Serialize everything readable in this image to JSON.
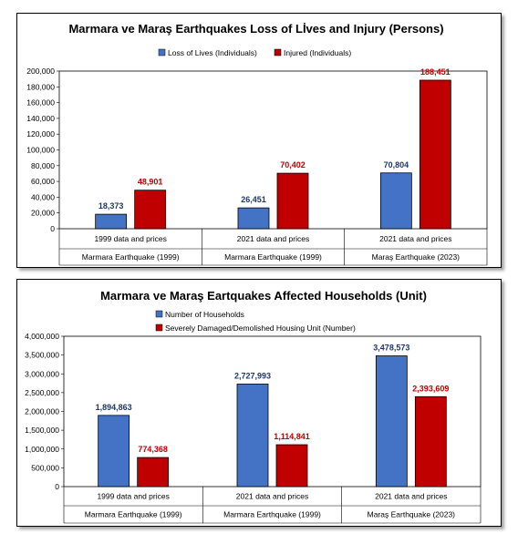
{
  "chart_data": [
    {
      "type": "bar",
      "title": "Marmara ve Maraş Earthquakes Loss of Lİves and Injury (Persons)",
      "categories": [
        "1999 data and prices",
        "2021 data and prices",
        "2021 data and prices"
      ],
      "groups": [
        "Marmara Earthquake (1999)",
        "Marmara Earthquake (1999)",
        "Maraş Earthquake     (2023)"
      ],
      "series": [
        {
          "name": "Loss of Lives (Individuals)",
          "values": [
            18373,
            26451,
            70804
          ],
          "labels": [
            "18,373",
            "26,451",
            "70,804"
          ],
          "color": "#4472c4"
        },
        {
          "name": "Injured (Individuals)",
          "values": [
            48901,
            70402,
            188451
          ],
          "labels": [
            "48,901",
            "70,402",
            "188,451"
          ],
          "color": "#c00000"
        }
      ],
      "ylim": [
        0,
        200000
      ],
      "yticks": [
        "0",
        "20,000",
        "40,000",
        "60,000",
        "80,000",
        "100,000",
        "120,000",
        "140,000",
        "160,000",
        "180,000",
        "200,000"
      ],
      "legend": "top",
      "label_colors": [
        "#1f3864",
        "#c00000"
      ]
    },
    {
      "type": "bar",
      "title": "Marmara ve Maraş Eartquakes Affected Households (Unit)",
      "categories": [
        "1999 data and prices",
        "2021 data and prices",
        "2021 data and prices"
      ],
      "groups": [
        "Marmara Earthquake (1999)",
        "Marmara Earthquake (1999)",
        "Maraş Earthquake     (2023)"
      ],
      "series": [
        {
          "name": "Number of Households",
          "values": [
            1894863,
            2727993,
            3478573
          ],
          "labels": [
            "1,894,863",
            "2,727,993",
            "3,478,573"
          ],
          "color": "#4472c4"
        },
        {
          "name": "Severely Damaged/Demolished Housing Unit (Number)",
          "values": [
            774368,
            1114841,
            2393609
          ],
          "labels": [
            "774,368",
            "1,114,841",
            "2,393,609"
          ],
          "color": "#c00000"
        }
      ],
      "ylim": [
        0,
        4000000
      ],
      "yticks": [
        "0",
        "500,000",
        "1,000,000",
        "1,500,000",
        "2,000,000",
        "2,500,000",
        "3,000,000",
        "3,500,000",
        "4,000,000"
      ],
      "legend": "top-left",
      "label_colors": [
        "#1f3864",
        "#c00000"
      ]
    }
  ]
}
